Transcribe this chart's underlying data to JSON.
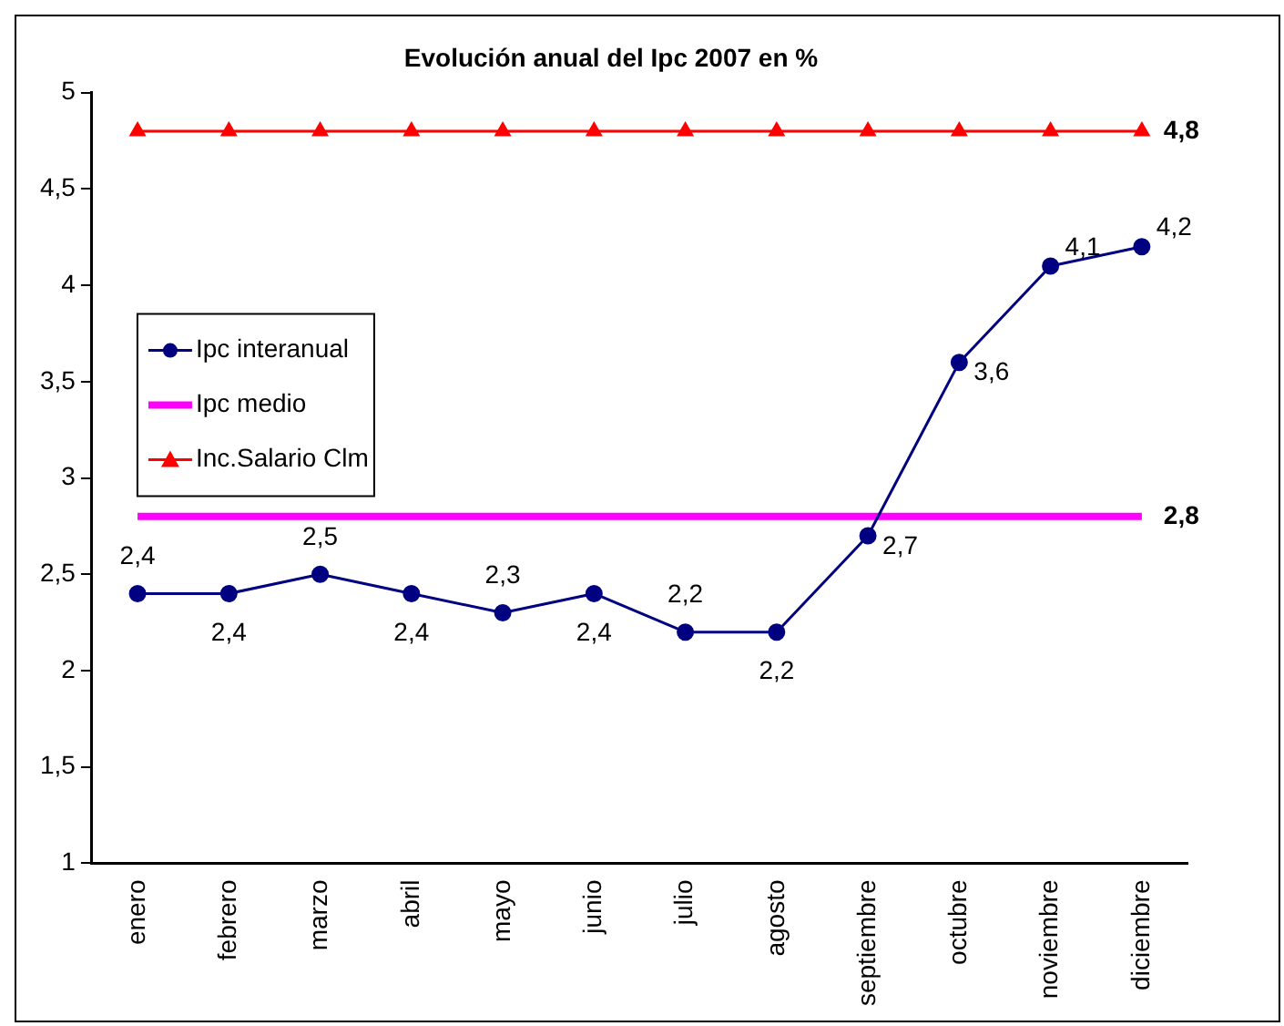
{
  "chart_data": {
    "type": "line",
    "title": "Evolución anual del Ipc 2007 en %",
    "categories": [
      "enero",
      "febrero",
      "marzo",
      "abril",
      "mayo",
      "junio",
      "julio",
      "agosto",
      "septiembre",
      "octubre",
      "noviembre",
      "diciembre"
    ],
    "series": [
      {
        "name": "Ipc interanual",
        "color": "#000080",
        "marker": "circle",
        "values": [
          2.4,
          2.4,
          2.5,
          2.4,
          2.3,
          2.4,
          2.2,
          2.2,
          2.7,
          3.6,
          4.1,
          4.2
        ],
        "value_labels": [
          "2,4",
          "2,4",
          "2,5",
          "2,4",
          "2,3",
          "2,4",
          "2,2",
          "2,2",
          "2,7",
          "3,6",
          "4,1",
          "4,2"
        ]
      },
      {
        "name": "Ipc medio",
        "color": "#ff00ff",
        "marker": "none",
        "values": [
          2.8,
          2.8,
          2.8,
          2.8,
          2.8,
          2.8,
          2.8,
          2.8,
          2.8,
          2.8,
          2.8,
          2.8
        ],
        "value_labels": [
          null,
          null,
          null,
          null,
          null,
          null,
          null,
          null,
          null,
          null,
          null,
          "2,8"
        ]
      },
      {
        "name": "Inc.Salario Clm",
        "color": "#ff0000",
        "marker": "triangle",
        "values": [
          4.8,
          4.8,
          4.8,
          4.8,
          4.8,
          4.8,
          4.8,
          4.8,
          4.8,
          4.8,
          4.8,
          4.8
        ],
        "value_labels": [
          null,
          null,
          null,
          null,
          null,
          null,
          null,
          null,
          null,
          null,
          null,
          "4,8"
        ]
      }
    ],
    "ylim": [
      1,
      5
    ],
    "yticks": [
      1,
      {
        "value": 1.5,
        "label": "1,5"
      },
      2,
      {
        "value": 2.5,
        "label": "2,5"
      },
      3,
      {
        "value": 3.5,
        "label": "3,5"
      },
      4,
      {
        "value": 4.5,
        "label": "4,5"
      },
      5
    ],
    "grid": false,
    "legend": "left"
  }
}
